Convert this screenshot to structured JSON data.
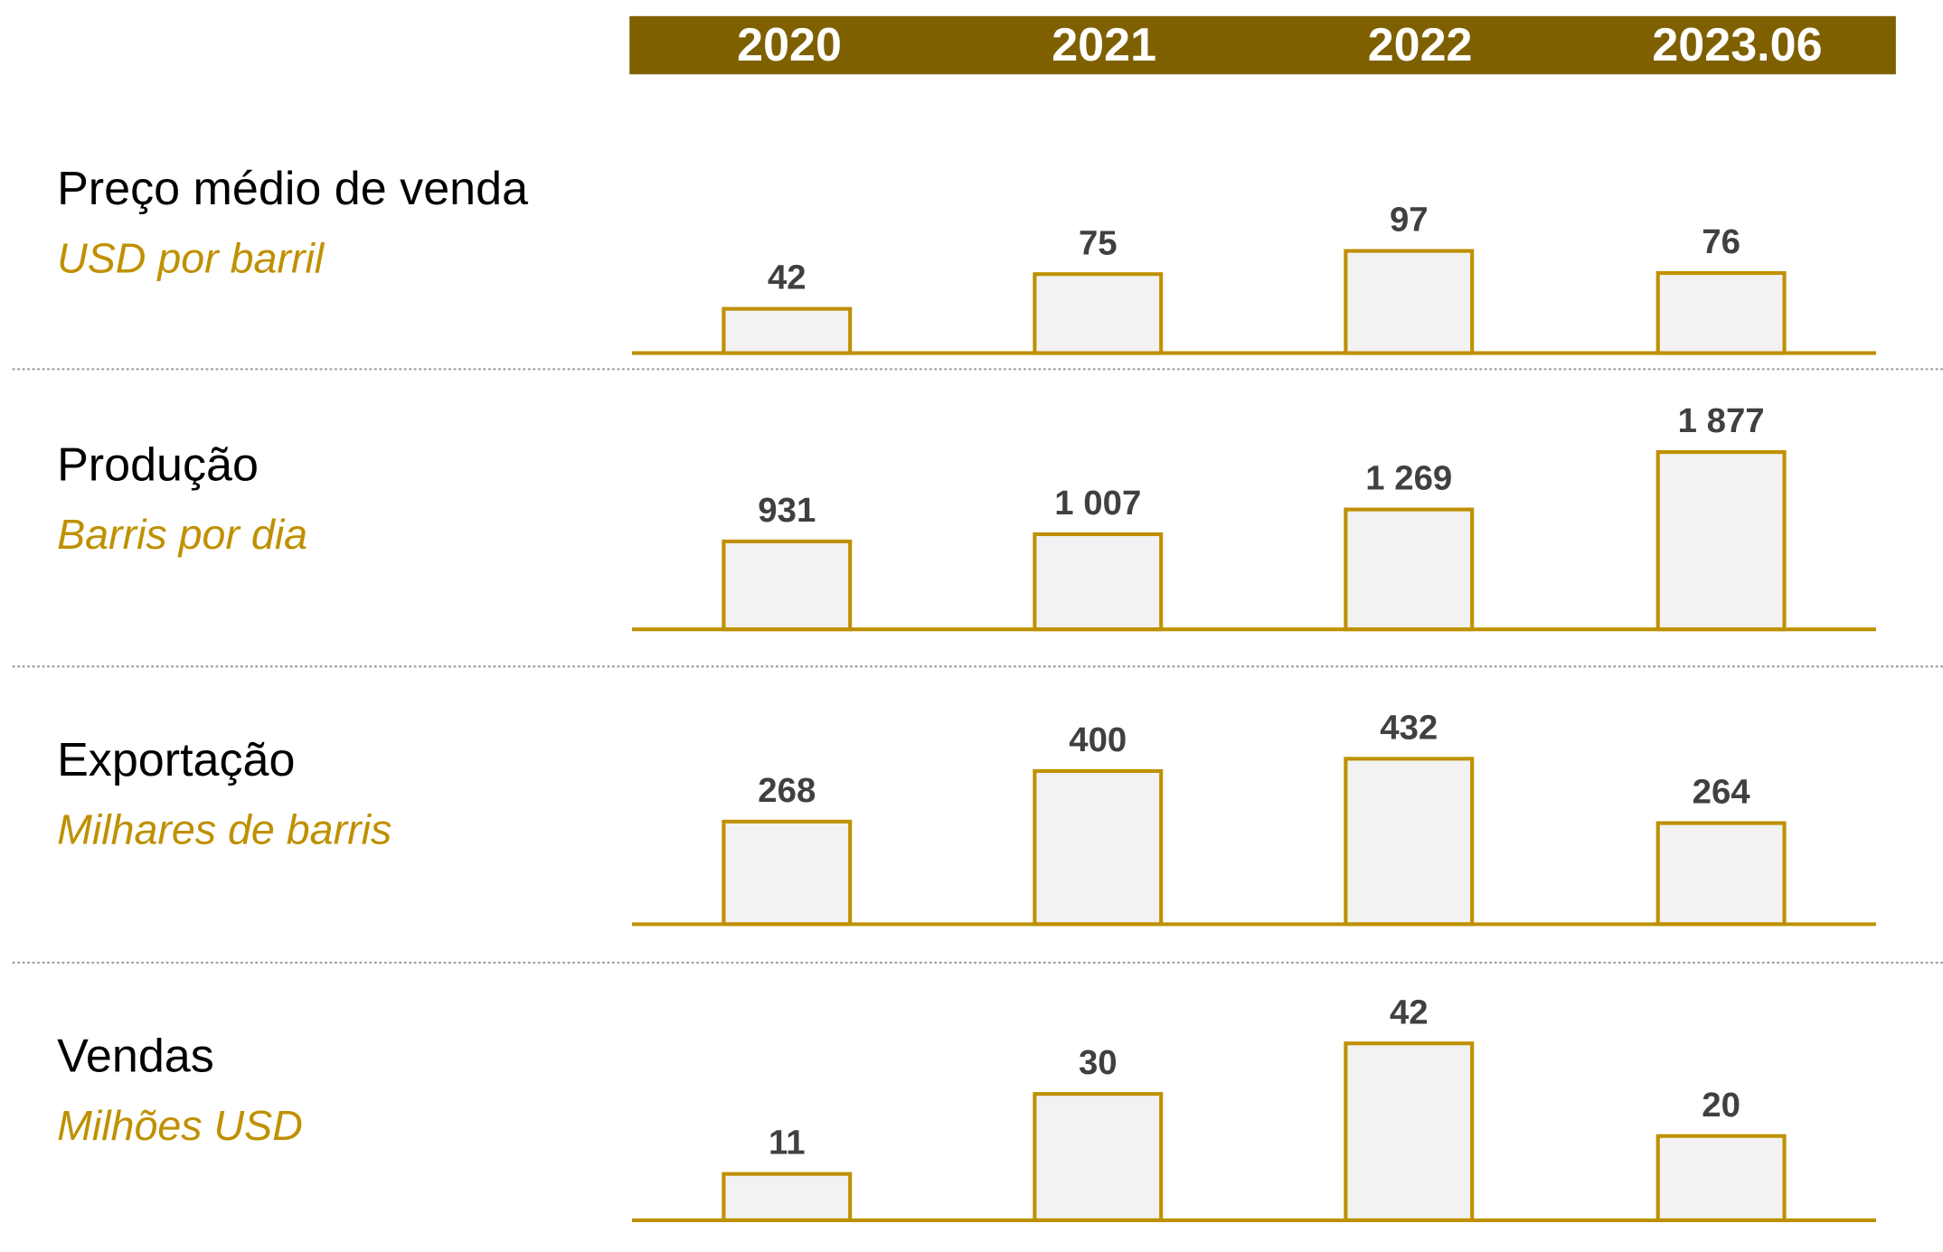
{
  "categories": [
    "2020",
    "2021",
    "2022",
    "2023.06"
  ],
  "chart_data": [
    {
      "type": "bar",
      "title": "Preço médio de venda",
      "subtitle": "USD por barril",
      "values": [
        42,
        75,
        97,
        76
      ],
      "ylim": [
        0,
        200
      ],
      "color": "#f2f2f2",
      "edge_color": "#bf9000"
    },
    {
      "type": "bar",
      "title": "Produção",
      "subtitle": "Barris por dia",
      "values": [
        931,
        1007,
        1269,
        1877
      ],
      "value_labels": [
        "931",
        "1 007",
        "1 269",
        "1 877"
      ],
      "ylim": [
        0,
        2230
      ],
      "color": "#f2f2f2",
      "edge_color": "#bf9000"
    },
    {
      "type": "bar",
      "title": "Exportação",
      "subtitle": "Milhares de barris",
      "values": [
        268,
        400,
        432,
        264
      ],
      "ylim": [
        0,
        550
      ],
      "color": "#f2f2f2",
      "edge_color": "#bf9000"
    },
    {
      "type": "bar",
      "title": "Vendas",
      "subtitle": "Milhões USD",
      "values": [
        11,
        30,
        42,
        20
      ],
      "ylim": [
        0,
        50
      ],
      "color": "#f2f2f2",
      "edge_color": "#bf9000"
    }
  ]
}
